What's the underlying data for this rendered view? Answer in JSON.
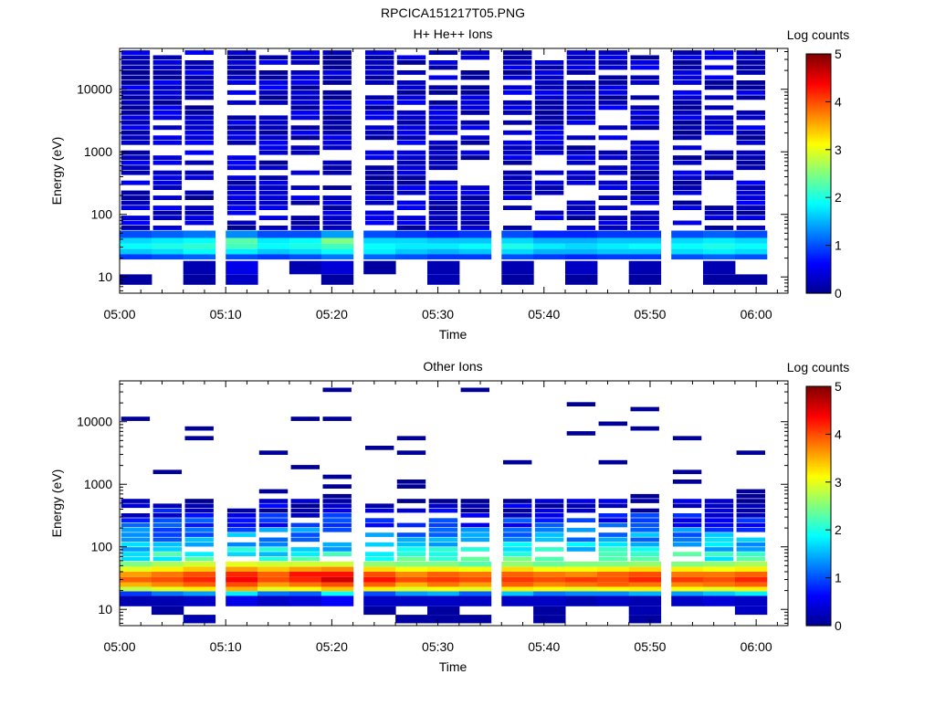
{
  "figure": {
    "title": "RPCICA151217T05.PNG"
  },
  "colors": {
    "colormap": [
      "#00008f",
      "#0000ff",
      "#0080ff",
      "#00ffff",
      "#80ff80",
      "#ffff00",
      "#ff8000",
      "#ff0000",
      "#800000"
    ],
    "background": "#ffffff",
    "axis": "#000000"
  },
  "chart_data": [
    {
      "type": "heatmap",
      "title": "H+ He++ Ions",
      "xlabel": "Time",
      "ylabel": "Energy (eV)",
      "x_ticks": [
        "05:00",
        "05:10",
        "05:20",
        "05:30",
        "05:40",
        "05:50",
        "06:00"
      ],
      "x_range": [
        "05:00",
        "06:03"
      ],
      "y_scale": "log",
      "y_ticks": [
        "10",
        "100",
        "1000",
        "10000"
      ],
      "y_range": [
        5.5,
        45000
      ],
      "colorbar": {
        "label": "Log counts",
        "ticks": [
          "0",
          "1",
          "2",
          "3",
          "4",
          "5"
        ],
        "range": [
          0,
          5
        ]
      },
      "time_bins": [
        "05:00",
        "05:03",
        "05:06",
        "05:10",
        "05:13",
        "05:16",
        "05:19",
        "05:23",
        "05:26",
        "05:29",
        "05:32",
        "05:36",
        "05:39",
        "05:42",
        "05:45",
        "05:48",
        "05:52",
        "05:55",
        "05:58"
      ],
      "energy_bands": [
        {
          "energy_eV": [
            7.5,
            11
          ],
          "values": [
            0.1,
            null,
            0.1,
            0.3,
            null,
            null,
            0.1,
            null,
            null,
            0.2,
            null,
            0.1,
            null,
            0.1,
            null,
            0.1,
            null,
            0.1,
            0.1
          ]
        },
        {
          "energy_eV": [
            11,
            18
          ],
          "values": [
            null,
            null,
            0.2,
            0.5,
            null,
            0.2,
            0.4,
            0.1,
            null,
            0.2,
            null,
            0.2,
            null,
            0.3,
            null,
            0.2,
            null,
            0.2,
            null
          ]
        },
        {
          "energy_eV": [
            19,
            23
          ],
          "values": [
            0.9,
            1.0,
            1.1,
            1.0,
            0.9,
            1.0,
            1.2,
            1.1,
            1.0,
            0.9,
            0.9,
            1.0,
            0.9,
            0.8,
            0.9,
            0.9,
            1.0,
            1.1,
            1.0
          ]
        },
        {
          "energy_eV": [
            23,
            28
          ],
          "values": [
            1.6,
            1.7,
            1.9,
            1.8,
            1.6,
            1.7,
            1.9,
            1.8,
            1.6,
            1.5,
            1.6,
            1.7,
            1.5,
            1.5,
            1.6,
            1.6,
            1.7,
            1.8,
            1.7
          ]
        },
        {
          "energy_eV": [
            28,
            34
          ],
          "values": [
            1.9,
            2.0,
            2.1,
            2.2,
            1.9,
            2.0,
            2.2,
            1.9,
            1.8,
            1.8,
            1.9,
            2.0,
            1.8,
            1.7,
            1.8,
            1.9,
            1.9,
            2.0,
            1.9
          ]
        },
        {
          "energy_eV": [
            34,
            42
          ],
          "values": [
            1.7,
            1.8,
            1.9,
            2.3,
            1.8,
            1.9,
            2.5,
            1.7,
            1.7,
            1.6,
            1.6,
            1.7,
            1.5,
            1.5,
            1.6,
            1.6,
            1.7,
            1.8,
            1.7
          ]
        },
        {
          "energy_eV": [
            42,
            55
          ],
          "values": [
            1.0,
            1.1,
            1.2,
            1.3,
            1.0,
            1.0,
            1.4,
            1.0,
            0.9,
            0.8,
            0.9,
            1.0,
            0.8,
            0.8,
            0.9,
            0.9,
            1.0,
            1.1,
            1.0
          ]
        }
      ],
      "continuum": {
        "energy_eV": [
          55,
          42000
        ],
        "description": "sparse low-count bins, log counts mostly 0-0.6"
      }
    },
    {
      "type": "heatmap",
      "title": "Other Ions",
      "xlabel": "Time",
      "ylabel": "Energy (eV)",
      "x_ticks": [
        "05:00",
        "05:10",
        "05:20",
        "05:30",
        "05:40",
        "05:50",
        "06:00"
      ],
      "x_range": [
        "05:00",
        "06:03"
      ],
      "y_scale": "log",
      "y_ticks": [
        "10",
        "100",
        "1000",
        "10000"
      ],
      "y_range": [
        5.5,
        45000
      ],
      "colorbar": {
        "label": "Log counts",
        "ticks": [
          "0",
          "1",
          "2",
          "3",
          "4",
          "5"
        ],
        "range": [
          0,
          5
        ]
      },
      "time_bins": [
        "05:00",
        "05:03",
        "05:06",
        "05:10",
        "05:13",
        "05:16",
        "05:19",
        "05:23",
        "05:26",
        "05:29",
        "05:32",
        "05:36",
        "05:39",
        "05:42",
        "05:45",
        "05:48",
        "05:52",
        "05:55",
        "05:58"
      ],
      "energy_bands": [
        {
          "energy_eV": [
            6,
            8.2
          ],
          "values": [
            null,
            null,
            0.2,
            null,
            null,
            null,
            null,
            null,
            0.1,
            0.1,
            0.1,
            null,
            0.1,
            null,
            null,
            0.1,
            null,
            null,
            null
          ]
        },
        {
          "energy_eV": [
            8.2,
            11.2
          ],
          "values": [
            null,
            0.1,
            null,
            null,
            null,
            null,
            null,
            0.1,
            null,
            0.1,
            null,
            null,
            0.1,
            null,
            null,
            0.2,
            null,
            null,
            0.3
          ]
        },
        {
          "energy_eV": [
            11.2,
            16.5
          ],
          "values": [
            0.2,
            0.2,
            0.3,
            0.5,
            0.3,
            0.4,
            0.6,
            0.3,
            0.3,
            0.3,
            0.3,
            0.3,
            0.3,
            0.2,
            0.3,
            0.2,
            0.3,
            0.4,
            0.3
          ]
        },
        {
          "energy_eV": [
            16.5,
            19.5
          ],
          "values": [
            0.9,
            1.2,
            1.4,
            1.8,
            1.2,
            1.1,
            1.9,
            1.0,
            1.4,
            1.5,
            1.1,
            1.6,
            1.2,
            1.3,
            1.3,
            1.5,
            1.4,
            1.6,
            1.8
          ]
        },
        {
          "energy_eV": [
            19.5,
            23
          ],
          "values": [
            2.8,
            3.0,
            3.2,
            3.5,
            3.0,
            3.1,
            3.4,
            3.2,
            3.0,
            3.1,
            3.0,
            3.2,
            3.1,
            3.0,
            3.1,
            3.2,
            3.1,
            3.0,
            3.2
          ]
        },
        {
          "energy_eV": [
            23,
            27
          ],
          "values": [
            3.5,
            3.7,
            3.9,
            4.0,
            3.6,
            3.8,
            4.0,
            3.9,
            3.5,
            3.8,
            3.6,
            3.9,
            3.7,
            3.8,
            3.9,
            3.8,
            3.7,
            3.8,
            3.9
          ]
        },
        {
          "energy_eV": [
            27,
            33
          ],
          "values": [
            3.9,
            4.0,
            4.2,
            4.4,
            4.0,
            4.2,
            4.6,
            4.3,
            4.0,
            4.1,
            4.0,
            4.1,
            4.0,
            4.1,
            4.0,
            4.2,
            4.1,
            4.0,
            4.2
          ]
        },
        {
          "energy_eV": [
            33,
            40
          ],
          "values": [
            3.6,
            3.8,
            4.0,
            4.2,
            3.9,
            4.3,
            4.3,
            4.0,
            3.7,
            3.9,
            3.8,
            3.9,
            3.8,
            3.7,
            3.9,
            4.0,
            3.8,
            3.8,
            3.9
          ]
        },
        {
          "energy_eV": [
            40,
            48
          ],
          "values": [
            3.0,
            3.2,
            3.4,
            3.6,
            3.4,
            3.6,
            3.7,
            3.3,
            3.1,
            3.2,
            3.1,
            3.3,
            3.1,
            3.1,
            3.2,
            3.3,
            3.2,
            3.1,
            3.2
          ]
        },
        {
          "energy_eV": [
            48,
            58
          ],
          "values": [
            2.5,
            2.7,
            2.9,
            3.0,
            2.9,
            2.9,
            2.9,
            2.6,
            2.5,
            2.5,
            2.3,
            2.6,
            2.4,
            2.5,
            2.5,
            2.6,
            2.5,
            2.6,
            2.7
          ]
        }
      ],
      "continuum": {
        "energy_eV": [
          58,
          35000
        ],
        "description": "counts decreasing with energy, log counts ~2 near 70 eV to 0 above 500 eV; sparse above 1000 eV"
      }
    }
  ]
}
